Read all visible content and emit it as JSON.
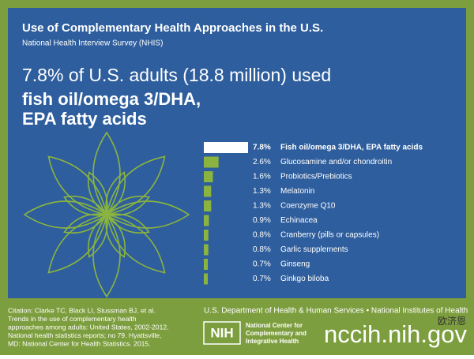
{
  "header": {
    "title": "Use of Complementary Health Approaches in the U.S.",
    "subtitle": "National Health Interview Survey (NHIS)",
    "headline": "7.8% of U.S. adults (18.8 million) used",
    "highlight": [
      "fish oil/omega 3/DHA,",
      "EPA fatty acids"
    ]
  },
  "chart_data": {
    "type": "bar",
    "orientation": "horizontal",
    "categories": [
      "Fish oil/omega 3/DHA, EPA fatty acids",
      "Glucosamine and/or chondroitin",
      "Probiotics/Prebiotics",
      "Melatonin",
      "Coenzyme Q10",
      "Echinacea",
      "Cranberry (pills or capsules)",
      "Garlic supplements",
      "Ginseng",
      "Ginkgo biloba"
    ],
    "values": [
      7.8,
      2.6,
      1.6,
      1.3,
      1.3,
      0.9,
      0.8,
      0.8,
      0.7,
      0.7
    ],
    "value_labels": [
      "7.8%",
      "2.6%",
      "1.6%",
      "1.3%",
      "1.3%",
      "0.9%",
      "0.8%",
      "0.8%",
      "0.7%",
      "0.7%"
    ],
    "colors": [
      "#ffffff",
      "#8ab43f",
      "#8ab43f",
      "#8ab43f",
      "#8ab43f",
      "#8ab43f",
      "#8ab43f",
      "#8ab43f",
      "#8ab43f",
      "#8ab43f"
    ]
  },
  "footer": {
    "citation": [
      "Citation: Clarke TC, Black LI, Stussman BJ, et al.",
      "Trends in the use of complementary health",
      "approaches among adults: United States, 2002-2012.",
      "National health statistics reports; no 79. Hyattsville,",
      "MD: National Center for Health Statistics. 2015."
    ],
    "agency": "U.S. Department of Health & Human Services • National Institutes of Health",
    "logo": "NIH",
    "center": [
      "National Center for",
      "Complementary and",
      "Integrative Health"
    ],
    "url": "nccih.nih.gov",
    "watermark": "欧济恩"
  }
}
